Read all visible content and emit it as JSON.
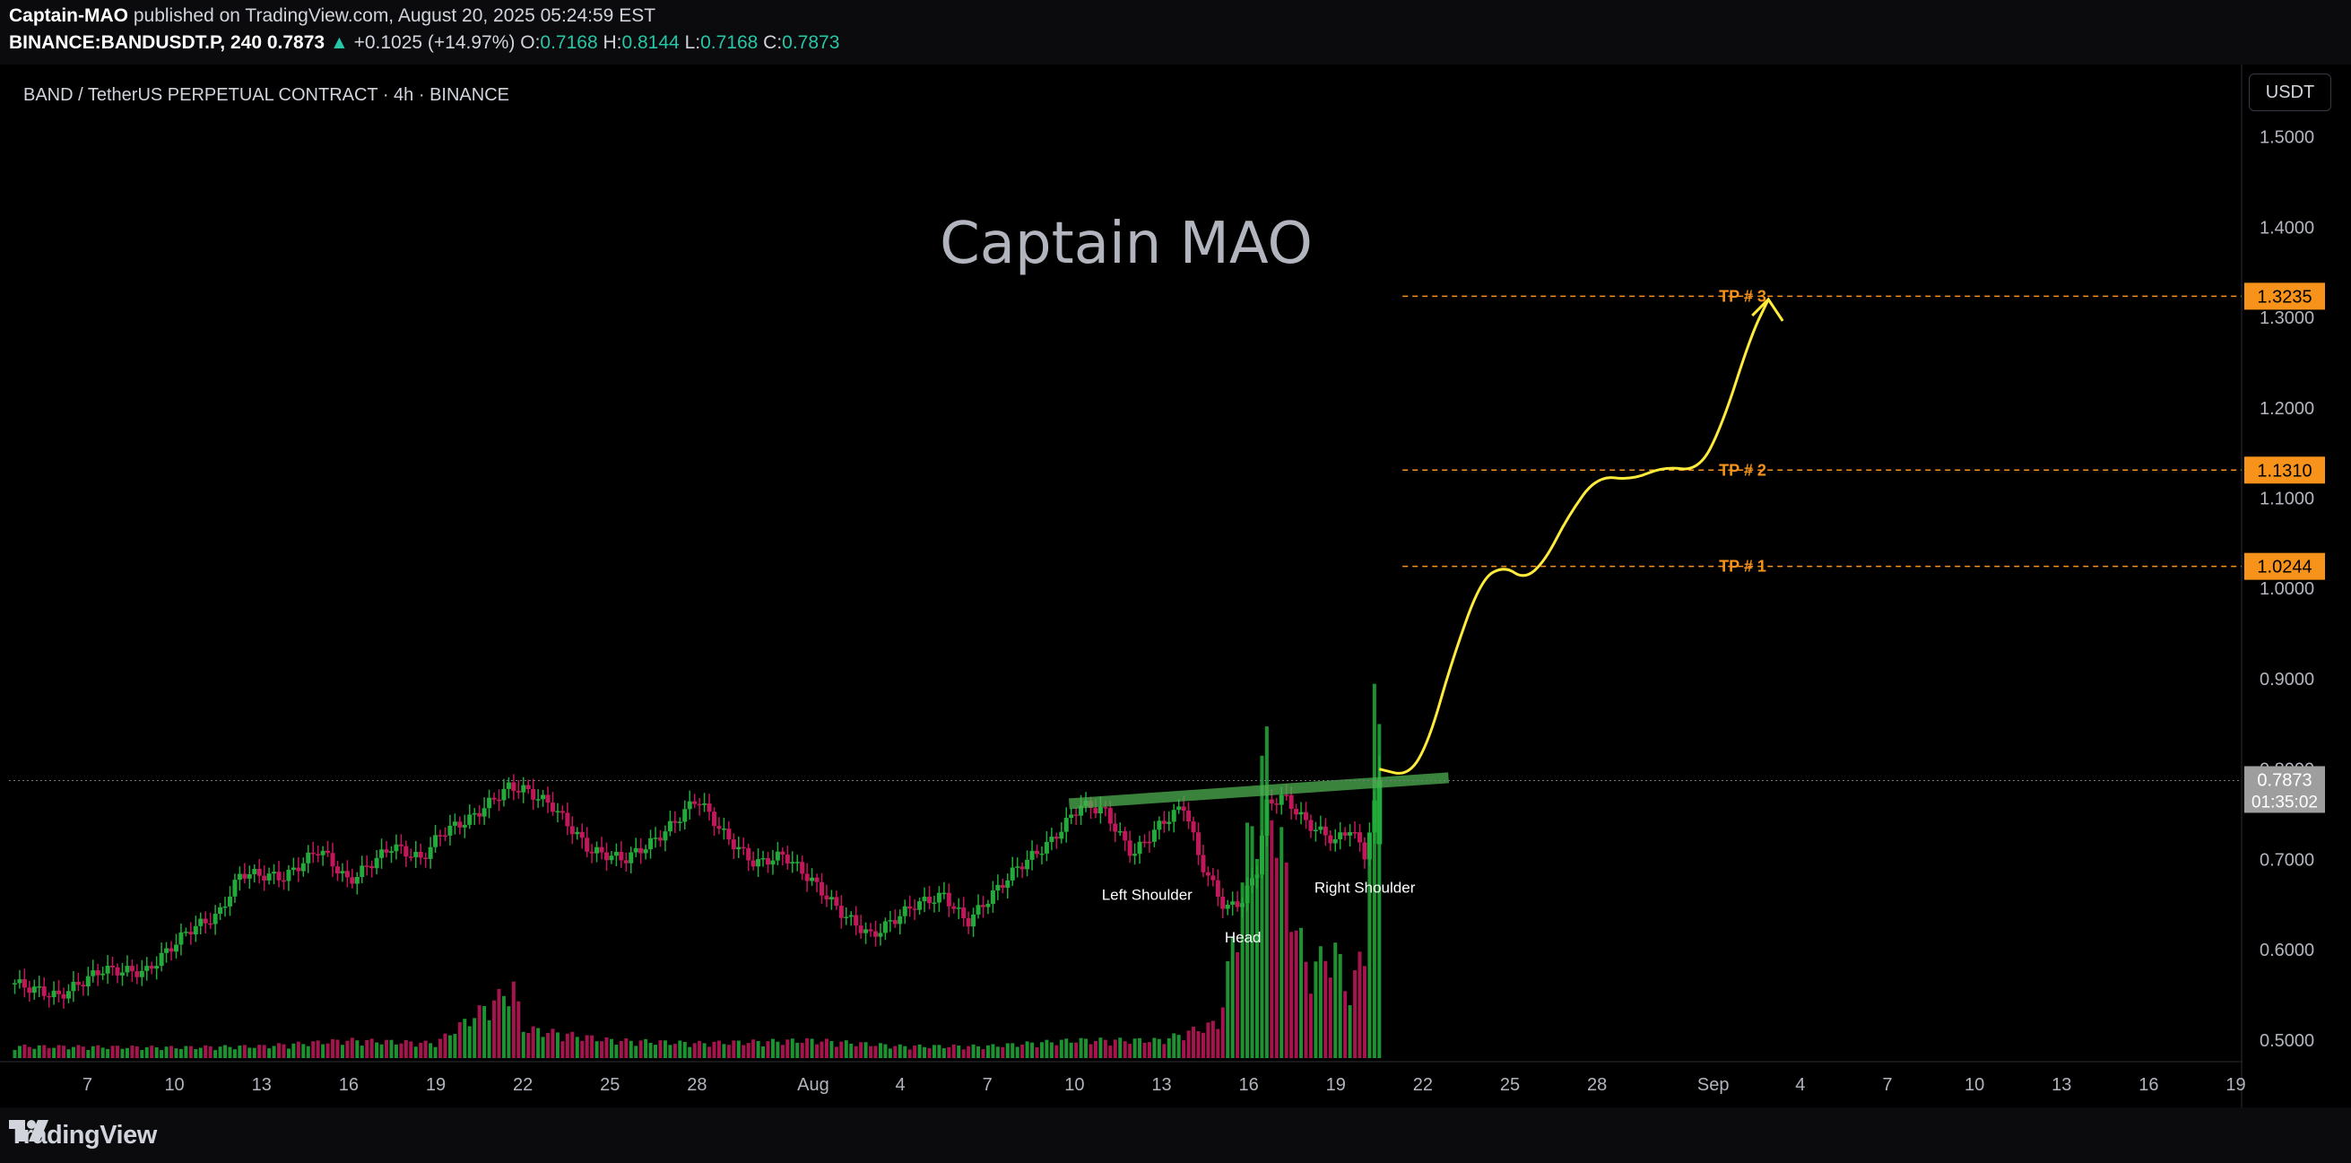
{
  "header": {
    "author": "Captain-MAO",
    "published_text": "published on TradingView.com, August 20, 2025 05:24:59 EST",
    "symbol": "BINANCE:BANDUSDT.P, 240",
    "last": "0.7873",
    "change": "+0.1025 (+14.97%)",
    "open_label": "O:",
    "open": "0.7168",
    "high_label": "H:",
    "high": "0.8144",
    "low_label": "L:",
    "low": "0.7168",
    "close_label": "C:",
    "close": "0.7873"
  },
  "legend": "BAND / TetherUS PERPETUAL CONTRACT · 4h · BINANCE",
  "watermark": "Captain MAO",
  "currency_button": "USDT",
  "footer": {
    "logo_text": "TradingView",
    "logo_icon": "tradingview-logo-icon"
  },
  "colors": {
    "up": "#22ab3a",
    "down": "#c2185b",
    "target": "#f7931a",
    "projection": "#ffeb3b",
    "neckline": "#4caf50",
    "price_tag": "#9e9e9e"
  },
  "chart_data": {
    "type": "candlestick",
    "interval": "4h",
    "y_ticks": [
      0.5,
      0.6,
      0.7,
      0.8,
      0.9,
      1.0,
      1.1,
      1.2,
      1.3,
      1.4,
      1.5
    ],
    "y_tick_labels": [
      "0.5000",
      "0.6000",
      "0.7000",
      "0.8000",
      "0.9000",
      "1.0000",
      "1.1000",
      "1.2000",
      "1.3000",
      "1.4000",
      "1.5000"
    ],
    "ylim": [
      0.48,
      1.58
    ],
    "x_ticks": [
      {
        "label": "7",
        "t": 7
      },
      {
        "label": "10",
        "t": 10
      },
      {
        "label": "13",
        "t": 13
      },
      {
        "label": "16",
        "t": 16
      },
      {
        "label": "19",
        "t": 19
      },
      {
        "label": "22",
        "t": 22
      },
      {
        "label": "25",
        "t": 25
      },
      {
        "label": "28",
        "t": 28
      },
      {
        "label": "Aug",
        "t": 32
      },
      {
        "label": "4",
        "t": 35
      },
      {
        "label": "7",
        "t": 38
      },
      {
        "label": "10",
        "t": 41
      },
      {
        "label": "13",
        "t": 44
      },
      {
        "label": "16",
        "t": 47
      },
      {
        "label": "19",
        "t": 50
      },
      {
        "label": "22",
        "t": 53
      },
      {
        "label": "25",
        "t": 56
      },
      {
        "label": "28",
        "t": 59
      },
      {
        "label": "Sep",
        "t": 63
      },
      {
        "label": "4",
        "t": 66
      },
      {
        "label": "7",
        "t": 69
      },
      {
        "label": "10",
        "t": 72
      },
      {
        "label": "13",
        "t": 75
      },
      {
        "label": "16",
        "t": 78
      },
      {
        "label": "19",
        "t": 81
      }
    ],
    "xlim": [
      4.3,
      81.2
    ],
    "price_path": [
      [
        4.3,
        0.565
      ],
      [
        6.0,
        0.548
      ],
      [
        7.5,
        0.578
      ],
      [
        9.0,
        0.575
      ],
      [
        10.5,
        0.622
      ],
      [
        11.5,
        0.638
      ],
      [
        12.3,
        0.685
      ],
      [
        13.8,
        0.68
      ],
      [
        15.0,
        0.712
      ],
      [
        16.0,
        0.675
      ],
      [
        17.5,
        0.715
      ],
      [
        18.5,
        0.7
      ],
      [
        19.2,
        0.73
      ],
      [
        20.2,
        0.745
      ],
      [
        21.5,
        0.78
      ],
      [
        22.0,
        0.778
      ],
      [
        23.0,
        0.76
      ],
      [
        24.3,
        0.71
      ],
      [
        25.5,
        0.7
      ],
      [
        26.5,
        0.72
      ],
      [
        27.2,
        0.74
      ],
      [
        28.0,
        0.768
      ],
      [
        29.0,
        0.725
      ],
      [
        30.0,
        0.695
      ],
      [
        31.0,
        0.705
      ],
      [
        32.0,
        0.675
      ],
      [
        33.0,
        0.64
      ],
      [
        34.0,
        0.615
      ],
      [
        35.5,
        0.65
      ],
      [
        36.5,
        0.66
      ],
      [
        37.3,
        0.63
      ],
      [
        38.0,
        0.655
      ],
      [
        39.0,
        0.69
      ],
      [
        40.2,
        0.72
      ],
      [
        41.2,
        0.76
      ],
      [
        42.0,
        0.755
      ],
      [
        43.0,
        0.705
      ],
      [
        44.0,
        0.74
      ],
      [
        44.8,
        0.76
      ],
      [
        45.3,
        0.7
      ],
      [
        46.2,
        0.645
      ],
      [
        46.8,
        0.655
      ],
      [
        47.3,
        0.69
      ],
      [
        47.6,
        0.76
      ],
      [
        48.2,
        0.77
      ],
      [
        49.0,
        0.74
      ],
      [
        50.0,
        0.72
      ],
      [
        50.5,
        0.735
      ],
      [
        51.0,
        0.705
      ],
      [
        51.5,
        0.787
      ]
    ],
    "volume_path": [
      [
        4.3,
        0.02
      ],
      [
        10,
        0.018
      ],
      [
        13,
        0.02
      ],
      [
        16,
        0.03
      ],
      [
        19,
        0.025
      ],
      [
        21.7,
        0.12
      ],
      [
        22,
        0.05
      ],
      [
        25,
        0.03
      ],
      [
        28,
        0.025
      ],
      [
        32,
        0.03
      ],
      [
        35,
        0.02
      ],
      [
        38,
        0.02
      ],
      [
        41,
        0.03
      ],
      [
        44,
        0.03
      ],
      [
        46,
        0.06
      ],
      [
        47.3,
        0.45
      ],
      [
        47.6,
        0.5
      ],
      [
        48.3,
        0.3
      ],
      [
        49,
        0.15
      ],
      [
        50,
        0.18
      ],
      [
        50.5,
        0.1
      ],
      [
        51,
        0.2
      ],
      [
        51.3,
        0.55
      ]
    ],
    "neckline": [
      [
        41.0,
        0.762
      ],
      [
        53.7,
        0.79
      ]
    ],
    "projection": [
      [
        51.5,
        0.8
      ],
      [
        52.5,
        0.792
      ],
      [
        53.2,
        0.83
      ],
      [
        54.0,
        0.92
      ],
      [
        55.0,
        1.01
      ],
      [
        55.8,
        1.025
      ],
      [
        56.5,
        1.01
      ],
      [
        57.2,
        1.03
      ],
      [
        58.0,
        1.08
      ],
      [
        59.0,
        1.125
      ],
      [
        60.2,
        1.12
      ],
      [
        61.3,
        1.135
      ],
      [
        62.5,
        1.13
      ],
      [
        63.3,
        1.18
      ],
      [
        64.3,
        1.28
      ],
      [
        64.9,
        1.32
      ]
    ],
    "targets": [
      {
        "label": "TP # 1",
        "value": 1.0244,
        "tag": "1.0244"
      },
      {
        "label": "TP # 2",
        "value": 1.131,
        "tag": "1.1310"
      },
      {
        "label": "TP # 3",
        "value": 1.3235,
        "tag": "1.3235"
      }
    ],
    "pattern_labels": [
      {
        "text": "Left Shoulder",
        "t": 43.5,
        "y": 0.655
      },
      {
        "text": "Head",
        "t": 46.8,
        "y": 0.608
      },
      {
        "text": "Right Shoulder",
        "t": 51.0,
        "y": 0.663
      }
    ],
    "last_price": {
      "value": 0.7873,
      "label": "0.7873",
      "countdown": "01:35:02"
    }
  }
}
